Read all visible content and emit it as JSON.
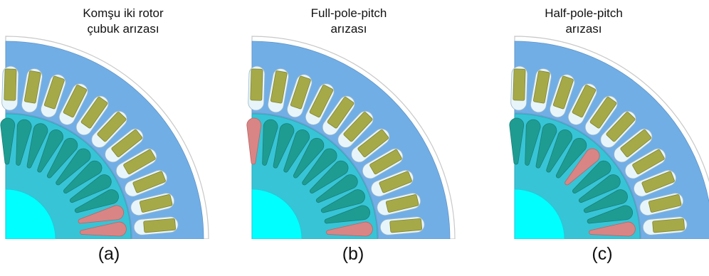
{
  "panels": [
    {
      "title_lines": [
        "Komşu iki rotor",
        "çubuk arızası"
      ],
      "caption": "(a)",
      "faulty_bars": [
        0,
        1
      ]
    },
    {
      "title_lines": [
        "Full-pole-pitch",
        "arızası"
      ],
      "caption": "(b)",
      "faulty_bars": [
        0,
        10
      ]
    },
    {
      "title_lines": [
        "Half-pole-pitch",
        "arızası"
      ],
      "caption": "(c)",
      "faulty_bars": [
        0,
        5
      ]
    }
  ],
  "colors": {
    "stator_core": "#72aee6",
    "stator_slot": "#e7f5fb",
    "stator_winding": "#a6a947",
    "rotor_core": "#37c4d6",
    "rotor_bar": "#1f9c92",
    "faulty_bar": "#d98585",
    "shaft": "#00ffff",
    "housing_ring": "#e6e6e6"
  }
}
